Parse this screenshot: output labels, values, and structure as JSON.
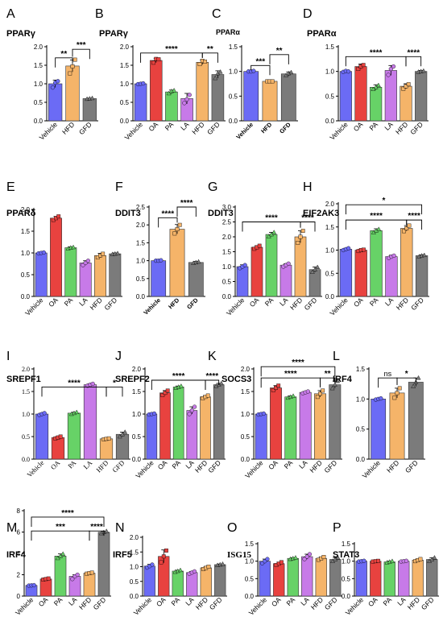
{
  "colors": {
    "Vehicle": "#6b6bf5",
    "OA": "#e8423f",
    "PA": "#67d267",
    "LA": "#c77ae8",
    "HFD": "#f5b469",
    "GFD": "#7b7b7b"
  },
  "chart_data": [
    {
      "id": "A",
      "letter": "A",
      "title": "PPARγ",
      "type": "bar",
      "categories": [
        "Vehicle",
        "HFD",
        "GFD"
      ],
      "values": [
        1.0,
        1.48,
        0.6
      ],
      "errors": [
        0.1,
        0.16,
        0.01
      ],
      "points": [
        [
          0.9,
          1.03,
          1.07
        ],
        [
          1.28,
          1.47,
          1.65
        ],
        [
          0.59,
          0.6,
          0.61
        ]
      ],
      "ylim": [
        0,
        2.0
      ],
      "yticks": [
        0.0,
        0.5,
        1.0,
        1.5,
        2.0
      ],
      "tick_labels": [
        "0.0",
        "0.5",
        "1.0",
        "1.5",
        "2.0"
      ],
      "sig": [
        {
          "a": 0,
          "b": 1,
          "label": "**",
          "level": 1.7
        },
        {
          "a": 1,
          "b": 2,
          "label": "***",
          "level": 1.93
        }
      ]
    },
    {
      "id": "B",
      "letter": "B",
      "title": "PPARγ",
      "type": "bar",
      "categories": [
        "Vehicle",
        "OA",
        "PA",
        "LA",
        "HFD",
        "GFD"
      ],
      "values": [
        1.0,
        1.63,
        0.78,
        0.6,
        1.58,
        1.25
      ],
      "errors": [
        0.02,
        0.06,
        0.05,
        0.14,
        0.06,
        0.1
      ],
      "points": [
        [
          0.99,
          1.0,
          1.01
        ],
        [
          1.57,
          1.67,
          1.66
        ],
        [
          0.74,
          0.8,
          0.82
        ],
        [
          0.48,
          0.58,
          0.7
        ],
        [
          1.53,
          1.62,
          1.6
        ],
        [
          1.15,
          1.28,
          1.32
        ]
      ],
      "ylim": [
        0,
        2.0
      ],
      "yticks": [
        0.0,
        0.5,
        1.0,
        1.5,
        2.0
      ],
      "tick_labels": [
        "0.0",
        "0.5",
        "1.0",
        "1.5",
        "2.0"
      ],
      "sig": [
        {
          "a": 0,
          "b": 4,
          "label": "****",
          "level": 1.83
        },
        {
          "a": 4,
          "b": 5,
          "label": "**",
          "level": 1.83
        }
      ]
    },
    {
      "id": "C",
      "letter": "C",
      "title": "PPARα",
      "type": "bar",
      "title_small": true,
      "bold_x": true,
      "categories": [
        "Vehicle",
        "HFD",
        "GFD"
      ],
      "values": [
        1.0,
        0.8,
        0.95
      ],
      "errors": [
        0.01,
        0.01,
        0.04
      ],
      "points": [
        [
          1.0,
          1.0,
          1.01
        ],
        [
          0.8,
          0.8,
          0.8
        ],
        [
          0.92,
          0.96,
          0.98
        ]
      ],
      "ylim": [
        0,
        1.5
      ],
      "yticks": [
        0.0,
        0.5,
        1.0,
        1.5
      ],
      "tick_labels": [
        "0.0",
        "0.5",
        "1.0",
        "1.5"
      ],
      "sig": [
        {
          "a": 0,
          "b": 1,
          "label": "***",
          "level": 1.12
        },
        {
          "a": 1,
          "b": 2,
          "label": "**",
          "level": 1.34
        }
      ]
    },
    {
      "id": "D",
      "letter": "D",
      "title": "PPARα",
      "type": "bar",
      "categories": [
        "Vehicle",
        "OA",
        "PA",
        "LA",
        "HFD",
        "GFD"
      ],
      "values": [
        1.0,
        1.1,
        0.68,
        1.02,
        0.7,
        1.0
      ],
      "errors": [
        0.02,
        0.05,
        0.05,
        0.1,
        0.05,
        0.02
      ],
      "points": [
        [
          0.99,
          1.01,
          1.0
        ],
        [
          1.05,
          1.1,
          1.13
        ],
        [
          0.64,
          0.68,
          0.72
        ],
        [
          0.93,
          1.05,
          1.1
        ],
        [
          0.65,
          0.7,
          0.74
        ],
        [
          0.99,
          1.0,
          1.01
        ]
      ],
      "ylim": [
        0,
        1.5
      ],
      "yticks": [
        0.0,
        0.5,
        1.0,
        1.5
      ],
      "tick_labels": [
        "0.0",
        "0.5",
        "1.0",
        "1.5"
      ],
      "sig": [
        {
          "a": 0,
          "b": 4,
          "label": "****",
          "level": 1.3
        },
        {
          "a": 4,
          "b": 5,
          "label": "****",
          "level": 1.3
        }
      ]
    },
    {
      "id": "E",
      "letter": "E",
      "title": "PPARδ",
      "type": "bar",
      "categories": [
        "Vehicle",
        "OA",
        "PA",
        "LA",
        "HFD",
        "GFD"
      ],
      "values": [
        1.0,
        1.8,
        1.12,
        0.77,
        0.94,
        0.98
      ],
      "errors": [
        0.01,
        0.04,
        0.02,
        0.05,
        0.05,
        0.02
      ],
      "points": [
        [
          0.99,
          1.0,
          1.01
        ],
        [
          1.76,
          1.8,
          1.84
        ],
        [
          1.1,
          1.12,
          1.13
        ],
        [
          0.72,
          0.77,
          0.82
        ],
        [
          0.9,
          0.94,
          0.98
        ],
        [
          0.97,
          0.98,
          0.99
        ]
      ],
      "ylim": [
        0,
        2.0
      ],
      "yticks": [
        0.0,
        0.5,
        1.0,
        1.5,
        2.0
      ],
      "tick_labels": [
        "0.0",
        "0.5",
        "1.0",
        "1.5",
        "2.0"
      ],
      "sig": []
    },
    {
      "id": "F",
      "letter": "F",
      "title": "DDIT3",
      "type": "bar",
      "bold_x": true,
      "categories": [
        "Vehicle",
        "HFD",
        "GFD"
      ],
      "values": [
        1.0,
        1.88,
        0.95
      ],
      "errors": [
        0.01,
        0.13,
        0.03
      ],
      "points": [
        [
          1.0,
          1.0,
          1.01
        ],
        [
          1.76,
          1.88,
          2.0
        ],
        [
          0.93,
          0.95,
          0.97
        ]
      ],
      "ylim": [
        0,
        2.5
      ],
      "yticks": [
        0.0,
        0.5,
        1.0,
        1.5,
        2.0,
        2.5
      ],
      "tick_labels": [
        "0.0",
        "0.5",
        "1.0",
        "1.5",
        "2.0",
        "2.5"
      ],
      "sig": [
        {
          "a": 0,
          "b": 1,
          "label": "****",
          "level": 2.2
        },
        {
          "a": 1,
          "b": 2,
          "label": "****",
          "level": 2.5
        }
      ]
    },
    {
      "id": "G",
      "letter": "G",
      "title": "DDIT3",
      "type": "bar",
      "categories": [
        "Vehicle",
        "OA",
        "PA",
        "LA",
        "HFD",
        "GFD"
      ],
      "values": [
        1.0,
        1.65,
        2.08,
        1.05,
        2.0,
        0.9
      ],
      "errors": [
        0.06,
        0.05,
        0.07,
        0.05,
        0.2,
        0.09
      ],
      "points": [
        [
          0.95,
          1.0,
          1.05
        ],
        [
          1.6,
          1.65,
          1.7
        ],
        [
          2.01,
          2.08,
          2.15
        ],
        [
          1.0,
          1.05,
          1.1
        ],
        [
          1.8,
          2.0,
          2.2
        ],
        [
          0.82,
          0.9,
          0.98
        ]
      ],
      "ylim": [
        0,
        3
      ],
      "yticks": [
        0,
        1,
        2,
        3
      ],
      "tick_labels": [
        "0.0",
        "1.0",
        "2.0",
        "3.0"
      ],
      "extra_ticks": [
        0.5,
        1.5,
        2.5
      ],
      "extra_labels": [
        "0.5",
        "1.5",
        "2.5"
      ],
      "sig": [
        {
          "a": 0,
          "b": 4,
          "label": "****",
          "level": 2.5
        },
        {
          "a": 4,
          "b": 5,
          "label": "****",
          "level": 2.5
        }
      ]
    },
    {
      "id": "H",
      "letter": "H",
      "title": "EIF2AK3",
      "type": "bar",
      "categories": [
        "Vehicle",
        "OA",
        "PA",
        "LA",
        "HFD",
        "GFD"
      ],
      "values": [
        1.02,
        1.0,
        1.42,
        0.86,
        1.47,
        0.88
      ],
      "errors": [
        0.02,
        0.02,
        0.04,
        0.03,
        0.06,
        0.02
      ],
      "points": [
        [
          1.0,
          1.02,
          1.04
        ],
        [
          0.98,
          1.0,
          1.01
        ],
        [
          1.38,
          1.42,
          1.45
        ],
        [
          0.83,
          0.86,
          0.88
        ],
        [
          1.41,
          1.47,
          1.53
        ],
        [
          0.86,
          0.88,
          0.89
        ]
      ],
      "ylim": [
        0,
        2.0
      ],
      "yticks": [
        0.0,
        0.5,
        1.0,
        1.5,
        2.0
      ],
      "tick_labels": [
        "0.0",
        "0.5",
        "1.0",
        "1.5",
        "2.0"
      ],
      "sig": [
        {
          "a": 0,
          "b": 4,
          "label": "****",
          "level": 1.65
        },
        {
          "a": 4,
          "b": 5,
          "label": "****",
          "level": 1.65
        },
        {
          "a": 0,
          "b": 5,
          "label": "*",
          "level": 1.98
        }
      ]
    },
    {
      "id": "I",
      "letter": "I",
      "title": "SREPF1",
      "type": "bar",
      "serif_x": true,
      "categories": [
        "Vehicle",
        "OA",
        "PA",
        "LA",
        "HFD",
        "GFD"
      ],
      "values": [
        1.0,
        0.48,
        1.02,
        1.65,
        0.45,
        0.55
      ],
      "errors": [
        0.02,
        0.02,
        0.02,
        0.02,
        0.01,
        0.05
      ],
      "points": [
        [
          0.98,
          1.0,
          1.02
        ],
        [
          0.46,
          0.48,
          0.5
        ],
        [
          1.0,
          1.02,
          1.04
        ],
        [
          1.63,
          1.65,
          1.67
        ],
        [
          0.44,
          0.45,
          0.46
        ],
        [
          0.5,
          0.55,
          0.6
        ]
      ],
      "ylim": [
        0,
        2.0
      ],
      "yticks": [
        0.0,
        0.5,
        1.0,
        1.5,
        2.0
      ],
      "tick_labels": [
        "0.0",
        "0.5",
        "1.0",
        "1.5",
        "2.0"
      ],
      "sig": [
        {
          "a": 0,
          "b": 4,
          "label": "****",
          "level": 1.6
        },
        {
          "a": 4,
          "b": 5,
          "label": "*",
          "level": 1.6
        }
      ]
    },
    {
      "id": "J",
      "letter": "J",
      "title": "SREPF2",
      "type": "bar",
      "categories": [
        "Vehicle",
        "OA",
        "PA",
        "LA",
        "HFD",
        "GFD"
      ],
      "values": [
        1.0,
        1.47,
        1.6,
        1.08,
        1.38,
        1.65
      ],
      "errors": [
        0.02,
        0.05,
        0.02,
        0.08,
        0.03,
        0.03
      ],
      "points": [
        [
          0.99,
          1.0,
          1.01
        ],
        [
          1.42,
          1.47,
          1.52
        ],
        [
          1.58,
          1.6,
          1.62
        ],
        [
          1.0,
          1.08,
          1.16
        ],
        [
          1.35,
          1.38,
          1.41
        ],
        [
          1.62,
          1.65,
          1.68
        ]
      ],
      "ylim": [
        0,
        2.0
      ],
      "yticks": [
        0.0,
        0.5,
        1.0,
        1.5,
        2.0
      ],
      "tick_labels": [
        "0.0",
        "0.5",
        "1.0",
        "1.5",
        "2.0"
      ],
      "sig": [
        {
          "a": 0,
          "b": 4,
          "label": "****",
          "level": 1.75
        },
        {
          "a": 4,
          "b": 5,
          "label": "****",
          "level": 1.75
        }
      ]
    },
    {
      "id": "K",
      "letter": "K",
      "title": "SOCS3",
      "type": "bar",
      "categories": [
        "Vehicle",
        "OA",
        "PA",
        "LA",
        "HFD",
        "GFD"
      ],
      "values": [
        1.0,
        1.58,
        1.38,
        1.48,
        1.45,
        1.65
      ],
      "errors": [
        0.01,
        0.05,
        0.02,
        0.02,
        0.07,
        0.08
      ],
      "points": [
        [
          0.99,
          1.0,
          1.01
        ],
        [
          1.53,
          1.58,
          1.63
        ],
        [
          1.36,
          1.38,
          1.4
        ],
        [
          1.46,
          1.48,
          1.5
        ],
        [
          1.38,
          1.45,
          1.52
        ],
        [
          1.57,
          1.65,
          1.73
        ]
      ],
      "ylim": [
        0,
        2.0
      ],
      "yticks": [
        0.0,
        0.5,
        1.0,
        1.5,
        2.0
      ],
      "tick_labels": [
        "0.0",
        "0.5",
        "1.0",
        "1.5",
        "2.0"
      ],
      "sig": [
        {
          "a": 0,
          "b": 4,
          "label": "****",
          "level": 1.8
        },
        {
          "a": 4,
          "b": 5,
          "label": "**",
          "level": 1.8
        },
        {
          "a": 0,
          "b": 5,
          "label": "****",
          "level": 2.05
        }
      ]
    },
    {
      "id": "L",
      "letter": "L",
      "title": "IRF4",
      "type": "bar",
      "categories": [
        "Vehicle",
        "HFD",
        "GFD"
      ],
      "values": [
        1.0,
        1.1,
        1.28
      ],
      "errors": [
        0.01,
        0.08,
        0.07
      ],
      "points": [
        [
          0.99,
          1.0,
          1.01
        ],
        [
          1.02,
          1.1,
          1.18
        ],
        [
          1.21,
          1.28,
          1.35
        ]
      ],
      "ylim": [
        0,
        1.5
      ],
      "yticks": [
        0.0,
        0.5,
        1.0,
        1.5
      ],
      "tick_labels": [
        "0.0",
        "0.5",
        "1.0",
        "1.5"
      ],
      "sig": [
        {
          "a": 0,
          "b": 1,
          "label": "ns",
          "level": 1.35,
          "ns": true
        },
        {
          "a": 1,
          "b": 2,
          "label": "*",
          "level": 1.35
        }
      ]
    },
    {
      "id": "M",
      "letter": "M",
      "title": "IRF4",
      "type": "bar",
      "categories": [
        "Vehicle",
        "OA",
        "PA",
        "LA",
        "HFD",
        "GFD"
      ],
      "values": [
        1.0,
        1.6,
        3.75,
        1.85,
        2.15,
        5.98
      ],
      "errors": [
        0.02,
        0.05,
        0.2,
        0.15,
        0.05,
        0.1
      ],
      "points": [
        [
          0.98,
          1.0,
          1.02
        ],
        [
          1.55,
          1.6,
          1.65
        ],
        [
          3.55,
          3.75,
          3.95
        ],
        [
          1.6,
          1.85,
          2.0
        ],
        [
          2.1,
          2.15,
          2.2
        ],
        [
          5.88,
          5.98,
          6.08
        ]
      ],
      "ylim": [
        0,
        8
      ],
      "yticks": [
        0,
        2,
        4,
        6,
        8
      ],
      "tick_labels": [
        "0",
        "2",
        "4",
        "6",
        "8"
      ],
      "sig": [
        {
          "a": 0,
          "b": 4,
          "label": "***",
          "level": 6.1
        },
        {
          "a": 4,
          "b": 5,
          "label": "****",
          "level": 6.1
        },
        {
          "a": 0,
          "b": 5,
          "label": "****",
          "level": 7.4
        }
      ]
    },
    {
      "id": "N",
      "letter": "N",
      "title": "IRF5",
      "type": "bar",
      "categories": [
        "Vehicle",
        "OA",
        "PA",
        "LA",
        "HFD",
        "GFD"
      ],
      "values": [
        1.02,
        1.35,
        0.85,
        0.8,
        0.96,
        1.07
      ],
      "errors": [
        0.06,
        0.22,
        0.03,
        0.04,
        0.04,
        0.02
      ],
      "points": [
        [
          0.97,
          1.02,
          1.07
        ],
        [
          1.15,
          1.35,
          1.55
        ],
        [
          0.82,
          0.85,
          0.88
        ],
        [
          0.76,
          0.8,
          0.84
        ],
        [
          0.92,
          0.96,
          1.0
        ],
        [
          1.05,
          1.07,
          1.09
        ]
      ],
      "ylim": [
        0,
        2.0
      ],
      "yticks": [
        0.0,
        0.5,
        1.0,
        1.5,
        2.0
      ],
      "tick_labels": [
        "0.0",
        "0.5",
        "1.0",
        "1.5",
        "2.0"
      ],
      "sig": []
    },
    {
      "id": "O",
      "letter": "O",
      "title": "ISG15",
      "type": "bar",
      "title_serif": true,
      "categories": [
        "Vehicle",
        "OA",
        "PA",
        "LA",
        "HFD",
        "GFD"
      ],
      "values": [
        1.0,
        0.93,
        1.08,
        1.13,
        1.08,
        1.05
      ],
      "errors": [
        0.06,
        0.04,
        0.02,
        0.07,
        0.04,
        0.05
      ],
      "points": [
        [
          0.94,
          1.0,
          1.06
        ],
        [
          0.89,
          0.93,
          0.97
        ],
        [
          1.06,
          1.08,
          1.1
        ],
        [
          1.06,
          1.13,
          1.2
        ],
        [
          1.04,
          1.08,
          1.12
        ],
        [
          1.0,
          1.05,
          1.1
        ]
      ],
      "ylim": [
        0,
        1.5
      ],
      "yticks": [
        0.0,
        0.5,
        1.0,
        1.5
      ],
      "tick_labels": [
        "0.0",
        "0.5",
        "1.0",
        "1.5"
      ],
      "sig": []
    },
    {
      "id": "P",
      "letter": "P",
      "title": "STAT3",
      "type": "bar",
      "categories": [
        "Vehicle",
        "OA",
        "PA",
        "LA",
        "HFD",
        "GFD"
      ],
      "values": [
        1.0,
        1.0,
        0.98,
        1.0,
        1.03,
        1.05
      ],
      "errors": [
        0.01,
        0.01,
        0.02,
        0.01,
        0.03,
        0.05
      ],
      "points": [
        [
          0.99,
          1.0,
          1.01
        ],
        [
          0.99,
          1.0,
          1.01
        ],
        [
          0.96,
          0.98,
          1.0
        ],
        [
          0.99,
          1.0,
          1.01
        ],
        [
          1.0,
          1.03,
          1.06
        ],
        [
          1.0,
          1.05,
          1.1
        ]
      ],
      "ylim": [
        0,
        1.5
      ],
      "yticks": [
        0.0,
        0.5,
        1.0,
        1.5
      ],
      "tick_labels": [
        "0.0",
        "0.5",
        "1.0",
        "1.5"
      ],
      "sig": []
    }
  ]
}
